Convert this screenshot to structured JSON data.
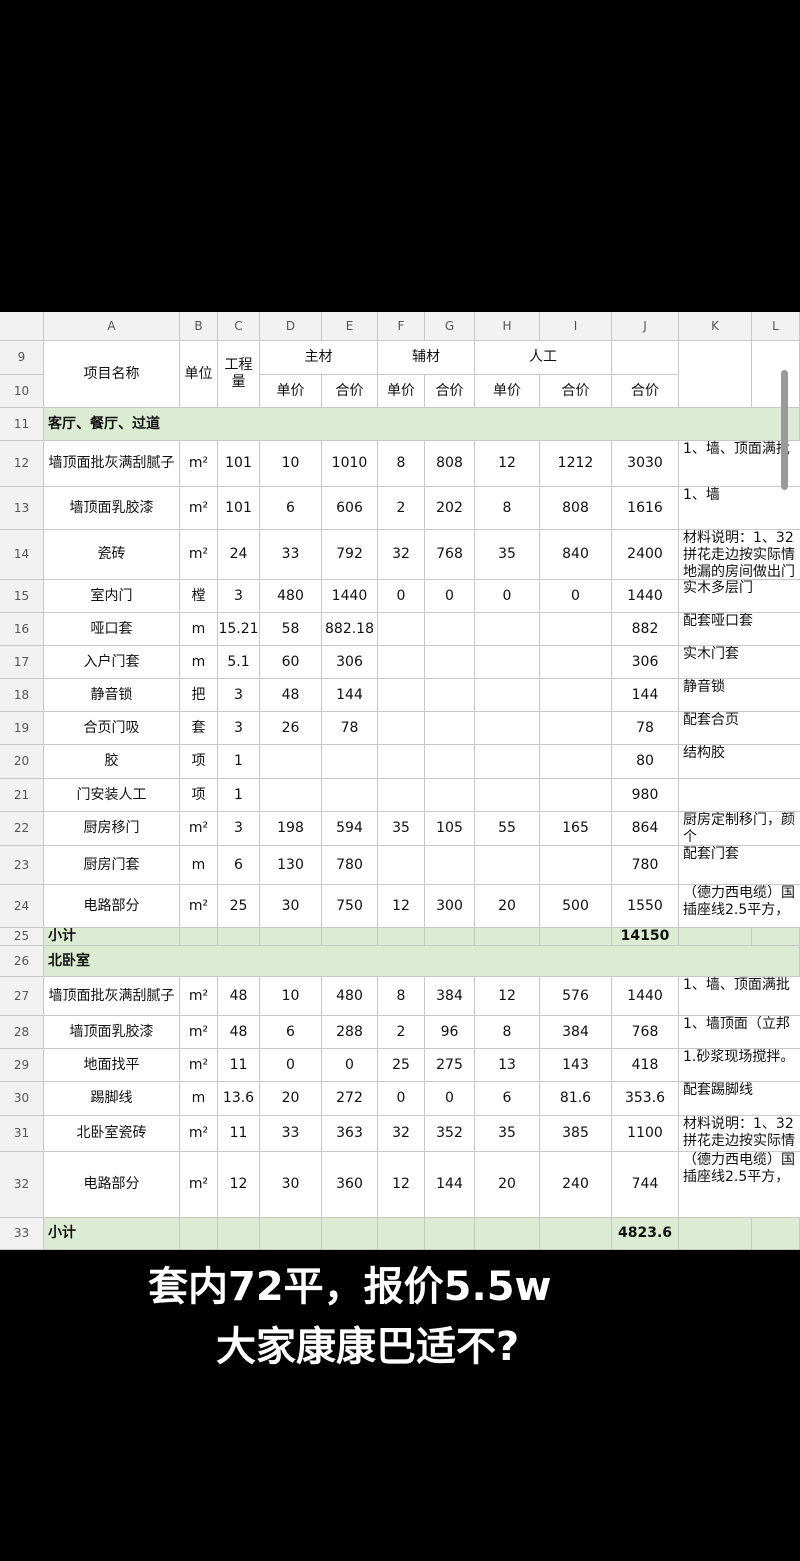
{
  "column_letters": [
    "A",
    "B",
    "C",
    "D",
    "E",
    "F",
    "G",
    "H",
    "I",
    "J",
    "K",
    "L"
  ],
  "header": {
    "row_numbers": [
      9,
      10
    ],
    "item": "项目名称",
    "unit": "单位",
    "quantity": "工程量",
    "groups": [
      "主材",
      "辅材",
      "人工"
    ],
    "sub": [
      "单价",
      "合价",
      "单价",
      "合价",
      "单价",
      "合价"
    ],
    "total": "合价"
  },
  "rows": [
    {
      "row": 11,
      "section": "客厅、餐厅、过道"
    },
    {
      "row": 12,
      "cells": [
        "墙顶面批灰满刮腻子",
        "m²",
        101,
        10,
        1010,
        8,
        808,
        12,
        1212,
        3030,
        [
          "1、墙、顶面满批"
        ]
      ]
    },
    {
      "row": 13,
      "cells": [
        "墙顶面乳胶漆",
        "m²",
        101,
        6,
        606,
        2,
        202,
        8,
        808,
        1616,
        [
          "1、墙"
        ]
      ]
    },
    {
      "row": 14,
      "cells": [
        "瓷砖",
        "m²",
        24,
        33,
        792,
        32,
        768,
        35,
        840,
        2400,
        [
          "材料说明：1、32",
          "拼花走边按实际情",
          "地漏的房间做出门"
        ]
      ]
    },
    {
      "row": 15,
      "cells": [
        "室内门",
        "樘",
        3,
        480,
        1440,
        0,
        0,
        0,
        0,
        1440,
        [
          "实木多层门"
        ]
      ]
    },
    {
      "row": 16,
      "cells": [
        "哑口套",
        "m",
        15.21,
        58,
        882.18,
        null,
        null,
        null,
        null,
        882,
        [
          "配套哑口套"
        ]
      ]
    },
    {
      "row": 17,
      "cells": [
        "入户门套",
        "m",
        5.1,
        60,
        306,
        null,
        null,
        null,
        null,
        306,
        [
          "实木门套"
        ]
      ]
    },
    {
      "row": 18,
      "cells": [
        "静音锁",
        "把",
        3,
        48,
        144,
        null,
        null,
        null,
        null,
        144,
        [
          "静音锁"
        ]
      ]
    },
    {
      "row": 19,
      "cells": [
        "合页门吸",
        "套",
        3,
        26,
        78,
        null,
        null,
        null,
        null,
        78,
        [
          "配套合页"
        ]
      ]
    },
    {
      "row": 20,
      "cells": [
        "胶",
        "项",
        1,
        null,
        null,
        null,
        null,
        null,
        null,
        80,
        [
          "结构胶"
        ]
      ]
    },
    {
      "row": 21,
      "cells": [
        "门安装人工",
        "项",
        1,
        null,
        null,
        null,
        null,
        null,
        null,
        980,
        null
      ]
    },
    {
      "row": 22,
      "cells": [
        "厨房移门",
        "m²",
        3,
        198,
        594,
        35,
        105,
        55,
        165,
        864,
        [
          "厨房定制移门，颜",
          "个"
        ]
      ]
    },
    {
      "row": 23,
      "cells": [
        "厨房门套",
        "m",
        6,
        130,
        780,
        null,
        null,
        null,
        null,
        780,
        [
          "配套门套"
        ]
      ]
    },
    {
      "row": 24,
      "cells": [
        "电路部分",
        "m²",
        25,
        30,
        750,
        12,
        300,
        20,
        500,
        1550,
        [
          "（德力西电缆）国",
          "插座线2.5平方，"
        ]
      ]
    },
    {
      "row": 25,
      "label": "小计",
      "total": 14150
    },
    {
      "row": 26,
      "section": "北卧室"
    },
    {
      "row": 27,
      "cells": [
        "墙顶面批灰满刮腻子",
        "m²",
        48,
        10,
        480,
        8,
        384,
        12,
        576,
        1440,
        [
          "1、墙、顶面满批"
        ]
      ]
    },
    {
      "row": 28,
      "cells": [
        "墙顶面乳胶漆",
        "m²",
        48,
        6,
        288,
        2,
        96,
        8,
        384,
        768,
        [
          "1、墙顶面（立邦"
        ]
      ]
    },
    {
      "row": 29,
      "cells": [
        "地面找平",
        "m²",
        11,
        0,
        0,
        25,
        275,
        13,
        143,
        418,
        [
          "1.砂浆现场搅拌。"
        ]
      ]
    },
    {
      "row": 30,
      "cells": [
        "踢脚线",
        "m",
        13.6,
        20,
        272,
        0,
        0,
        6,
        81.6,
        353.6,
        [
          "配套踢脚线"
        ]
      ]
    },
    {
      "row": 31,
      "cells": [
        "北卧室瓷砖",
        "m²",
        11,
        33,
        363,
        32,
        352,
        35,
        385,
        1100,
        [
          "材料说明：1、32",
          "拼花走边按实际情"
        ]
      ]
    },
    {
      "row": 32,
      "cells": [
        "电路部分",
        "m²",
        12,
        30,
        360,
        12,
        144,
        20,
        240,
        744,
        [
          "（德力西电缆）国",
          "插座线2.5平方，"
        ]
      ]
    },
    {
      "row": 33,
      "label": "小计",
      "total": 4823.6
    }
  ],
  "caption": [
    "套内72平，报价5.5w",
    "大家康康巴适不?"
  ]
}
